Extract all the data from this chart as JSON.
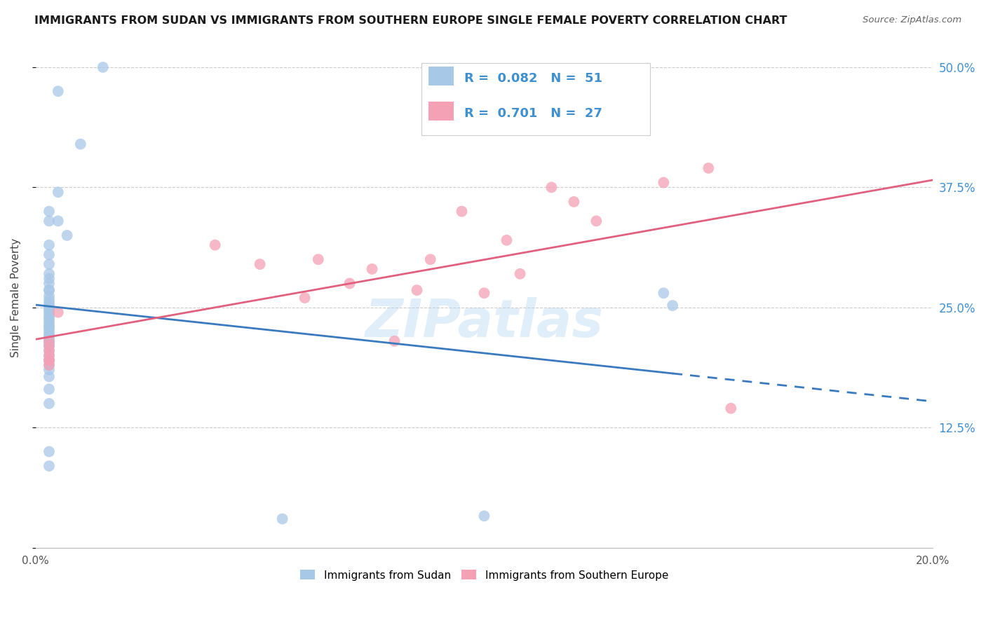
{
  "title": "IMMIGRANTS FROM SUDAN VS IMMIGRANTS FROM SOUTHERN EUROPE SINGLE FEMALE POVERTY CORRELATION CHART",
  "source": "Source: ZipAtlas.com",
  "ylabel": "Single Female Poverty",
  "color_blue": "#a8c8e8",
  "color_pink": "#f4a0b5",
  "color_blue_line": "#3a7abf",
  "color_pink_line": "#e0607e",
  "color_blue_text": "#4090d0",
  "watermark": "ZIPatlas",
  "sudan_x": [
    0.005,
    0.01,
    0.015,
    0.005,
    0.005,
    0.007,
    0.003,
    0.003,
    0.003,
    0.003,
    0.003,
    0.003,
    0.003,
    0.003,
    0.003,
    0.003,
    0.003,
    0.003,
    0.003,
    0.003,
    0.003,
    0.003,
    0.003,
    0.003,
    0.003,
    0.003,
    0.003,
    0.003,
    0.003,
    0.003,
    0.003,
    0.003,
    0.003,
    0.003,
    0.003,
    0.003,
    0.003,
    0.003,
    0.003,
    0.003,
    0.003,
    0.003,
    0.003,
    0.055,
    0.1,
    0.14,
    0.142,
    0.003,
    0.003,
    0.003,
    0.003
  ],
  "sudan_y": [
    0.475,
    0.42,
    0.5,
    0.37,
    0.34,
    0.325,
    0.315,
    0.305,
    0.295,
    0.285,
    0.28,
    0.275,
    0.268,
    0.262,
    0.258,
    0.255,
    0.252,
    0.25,
    0.248,
    0.246,
    0.243,
    0.24,
    0.238,
    0.235,
    0.232,
    0.23,
    0.228,
    0.225,
    0.222,
    0.22,
    0.218,
    0.215,
    0.212,
    0.21,
    0.205,
    0.2,
    0.195,
    0.19,
    0.185,
    0.178,
    0.165,
    0.15,
    0.1,
    0.03,
    0.033,
    0.265,
    0.252,
    0.34,
    0.35,
    0.268,
    0.085
  ],
  "seurope_x": [
    0.003,
    0.003,
    0.003,
    0.003,
    0.003,
    0.003,
    0.003,
    0.005,
    0.04,
    0.05,
    0.06,
    0.063,
    0.07,
    0.075,
    0.08,
    0.085,
    0.088,
    0.095,
    0.1,
    0.105,
    0.108,
    0.115,
    0.12,
    0.125,
    0.14,
    0.15,
    0.155
  ],
  "seurope_y": [
    0.2,
    0.195,
    0.21,
    0.19,
    0.215,
    0.205,
    0.195,
    0.245,
    0.315,
    0.295,
    0.26,
    0.3,
    0.275,
    0.29,
    0.215,
    0.268,
    0.3,
    0.35,
    0.265,
    0.32,
    0.285,
    0.375,
    0.36,
    0.34,
    0.38,
    0.395,
    0.145
  ],
  "xlim": [
    0.0,
    0.2
  ],
  "ylim": [
    0.0,
    0.52
  ],
  "ytick_vals": [
    0.0,
    0.125,
    0.25,
    0.375,
    0.5
  ],
  "ytick_labels": [
    "",
    "12.5%",
    "25.0%",
    "37.5%",
    "50.0%"
  ],
  "xtick_vals": [
    0.0,
    0.04,
    0.08,
    0.12,
    0.16,
    0.2
  ],
  "legend_r1": "0.082",
  "legend_n1": "51",
  "legend_r2": "0.701",
  "legend_n2": "27"
}
